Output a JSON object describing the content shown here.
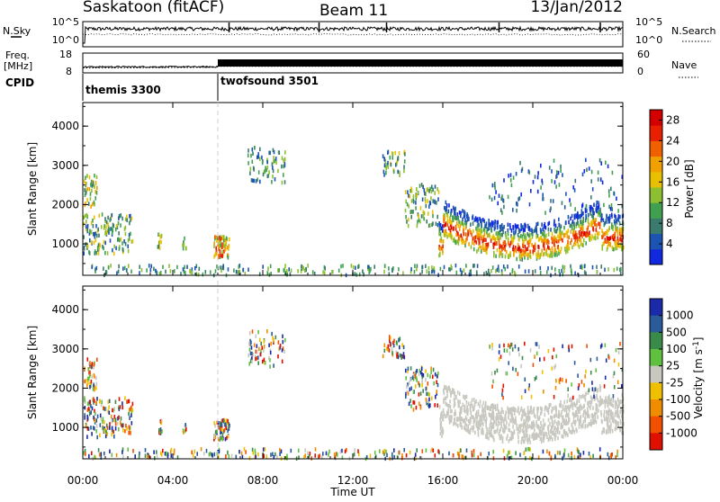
{
  "header": {
    "station": "Saskatoon (fitACF)",
    "beam": "Beam 11",
    "date": "13/Jan/2012"
  },
  "top_panel_labels": {
    "nsky": "N.Sky",
    "nsky_ticks": [
      "10^5",
      "10^0"
    ],
    "nsearch": "N.Search",
    "nsearch_ticks": [
      "10^5",
      "10^0"
    ],
    "freq_line1": "Freq.",
    "freq_line2": "[MHz]",
    "freq_ticks": [
      "18",
      "8"
    ],
    "nave": "Nave",
    "nave_ticks": [
      "60",
      "0"
    ],
    "cpid": "CPID"
  },
  "chart_data": [
    {
      "type": "line",
      "panel": "noise",
      "x_label": "",
      "x_range_hours": [
        0,
        24
      ],
      "series": [
        {
          "name": "N.Sky",
          "style": "solid"
        },
        {
          "name": "N.Search",
          "style": "dotted"
        }
      ]
    },
    {
      "type": "line",
      "panel": "frequency / nave",
      "series": [
        {
          "name": "Freq.",
          "style": "dotted",
          "x": [
            0,
            6,
            6,
            24
          ],
          "y": [
            10.5,
            10.8,
            11.3,
            11.3
          ]
        },
        {
          "name": "Nave",
          "style": "solid"
        }
      ],
      "y_range_freq": [
        8,
        18
      ],
      "y_range_nave": [
        0,
        60
      ]
    },
    {
      "type": "table",
      "panel": "CPID",
      "segments": [
        {
          "start_hour": 0,
          "end_hour": 6,
          "label": "themis 3300"
        },
        {
          "start_hour": 6,
          "end_hour": 24,
          "label": "twofsound 3501"
        }
      ]
    },
    {
      "type": "heatmap",
      "panel": "power",
      "ylabel": "Slant Range [km]",
      "ylim": [
        200,
        4600
      ],
      "y_ticks": [
        "1000",
        "2000",
        "3000",
        "4000"
      ],
      "colorbar_label": "Power [dB]",
      "colorbar_ticks": [
        "4",
        "8",
        "12",
        "16",
        "20",
        "24",
        "28"
      ],
      "colorbar_range": [
        0,
        30
      ],
      "colorscale": [
        "#1028e0",
        "#1c54b4",
        "#3a7b6e",
        "#40a050",
        "#8cc030",
        "#e8c000",
        "#f0a000",
        "#f06000",
        "#e82000",
        "#d40000"
      ]
    },
    {
      "type": "heatmap",
      "panel": "velocity",
      "ylabel": "Slant Range [km]",
      "ylim": [
        200,
        4600
      ],
      "y_ticks": [
        "1000",
        "2000",
        "3000",
        "4000"
      ],
      "colorbar_label": "Velocity [m s^-1]",
      "colorbar_ticks": [
        "1000",
        "500",
        "100",
        "25",
        "-25",
        "-100",
        "-500",
        "-1000"
      ],
      "colorscale": [
        "#1a2aa8",
        "#2a5a9a",
        "#3a8a4a",
        "#60c040",
        "#c8c8c0",
        "#f0c000",
        "#f08c00",
        "#f05000",
        "#e01000"
      ]
    }
  ],
  "x_axis": {
    "ticks": [
      "00:00",
      "04:00",
      "08:00",
      "12:00",
      "16:00",
      "20:00",
      "00:00"
    ],
    "label": "Time UT"
  }
}
